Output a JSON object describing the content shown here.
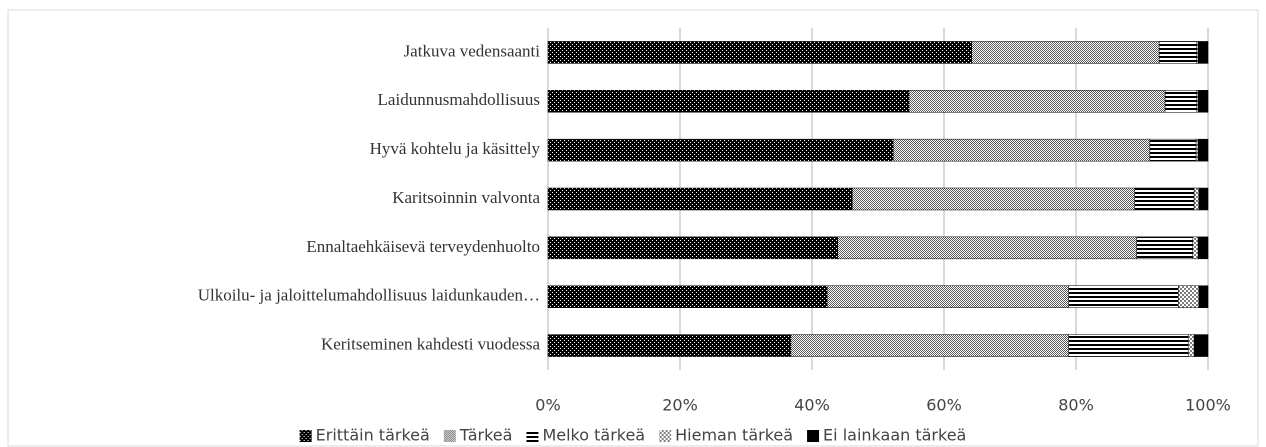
{
  "chart_data": {
    "type": "stacked_barh",
    "categories": [
      "Jatkuva vedensaanti",
      "Laidunnusmahdollisuus",
      "Hyvä kohtelu ja käsittely",
      "Karitsoinnin valvonta",
      "Ennaltaehkäisevä terveydenhuolto",
      "Ulkoilu- ja jaloittelumahdollisuus laidunkauden…",
      "Keritseminen kahdesti vuodessa"
    ],
    "series": [
      {
        "name": "Erittäin tärkeä",
        "color": "#000000",
        "values": [
          64.2,
          54.7,
          52.3,
          46.1,
          43.9,
          42.3,
          36.8
        ]
      },
      {
        "name": "Tärkeä",
        "color": "#595959",
        "values": [
          28.4,
          38.8,
          38.9,
          42.8,
          45.3,
          36.6,
          42.1
        ]
      },
      {
        "name": "Melko tärkeä",
        "color": "#000000",
        "values": [
          5.7,
          4.8,
          7.0,
          9.0,
          8.5,
          16.6,
          18.1
        ]
      },
      {
        "name": "Hieman tärkeä",
        "color": "#7f7f7f",
        "values": [
          0.2,
          0.2,
          0.3,
          0.7,
          0.8,
          3.1,
          0.9
        ]
      },
      {
        "name": "Ei lainkaan tärkeä",
        "color": "#000000",
        "values": [
          1.5,
          1.5,
          1.5,
          1.4,
          1.5,
          1.4,
          2.1
        ]
      }
    ],
    "xlim": [
      0,
      100
    ],
    "xticks": [
      {
        "value": 0,
        "label": "0%"
      },
      {
        "value": 20,
        "label": "20%"
      },
      {
        "value": 40,
        "label": "40%"
      },
      {
        "value": 60,
        "label": "60%"
      },
      {
        "value": 80,
        "label": "80%"
      },
      {
        "value": 100,
        "label": "100%"
      }
    ],
    "grid": true,
    "legend": "bottom"
  }
}
